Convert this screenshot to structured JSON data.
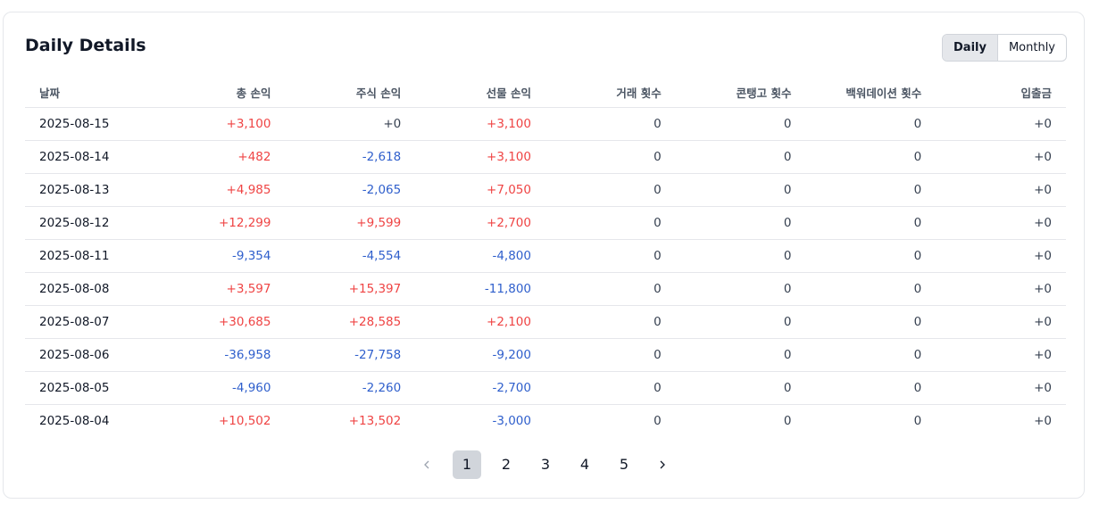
{
  "header": {
    "title": "Daily Details",
    "toggle": {
      "options": [
        "Daily",
        "Monthly"
      ],
      "selected": 0
    }
  },
  "table": {
    "columns": [
      "날짜",
      "총 손익",
      "주식 손익",
      "선물 손익",
      "거래 횟수",
      "콘탱고 횟수",
      "백워데이션 횟수",
      "입출금"
    ],
    "rows": [
      [
        "2025-08-15",
        "+3,100",
        "+0",
        "+3,100",
        "0",
        "0",
        "0",
        "+0"
      ],
      [
        "2025-08-14",
        "+482",
        "-2,618",
        "+3,100",
        "0",
        "0",
        "0",
        "+0"
      ],
      [
        "2025-08-13",
        "+4,985",
        "-2,065",
        "+7,050",
        "0",
        "0",
        "0",
        "+0"
      ],
      [
        "2025-08-12",
        "+12,299",
        "+9,599",
        "+2,700",
        "0",
        "0",
        "0",
        "+0"
      ],
      [
        "2025-08-11",
        "-9,354",
        "-4,554",
        "-4,800",
        "0",
        "0",
        "0",
        "+0"
      ],
      [
        "2025-08-08",
        "+3,597",
        "+15,397",
        "-11,800",
        "0",
        "0",
        "0",
        "+0"
      ],
      [
        "2025-08-07",
        "+30,685",
        "+28,585",
        "+2,100",
        "0",
        "0",
        "0",
        "+0"
      ],
      [
        "2025-08-06",
        "-36,958",
        "-27,758",
        "-9,200",
        "0",
        "0",
        "0",
        "+0"
      ],
      [
        "2025-08-05",
        "-4,960",
        "-2,260",
        "-2,700",
        "0",
        "0",
        "0",
        "+0"
      ],
      [
        "2025-08-04",
        "+10,502",
        "+13,502",
        "-3,000",
        "0",
        "0",
        "0",
        "+0"
      ]
    ]
  },
  "pagination": {
    "pages": [
      "1",
      "2",
      "3",
      "4",
      "5"
    ],
    "current": 0
  }
}
